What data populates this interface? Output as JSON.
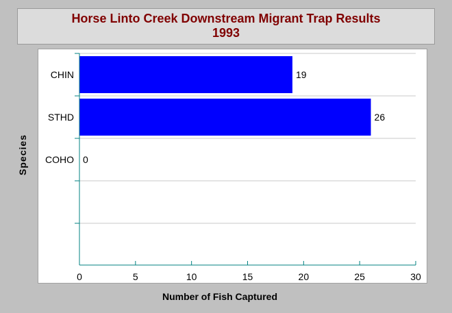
{
  "chart_data": {
    "type": "bar",
    "orientation": "horizontal",
    "title_lines": [
      "Horse Linto Creek Downstream Migrant Trap Results",
      "1993"
    ],
    "xlabel": "Number of Fish Captured",
    "ylabel": "Species",
    "categories": [
      "CHIN",
      "STHD",
      "COHO"
    ],
    "values": [
      19,
      26,
      0
    ],
    "xlim": [
      0,
      30
    ],
    "x_ticks": [
      0,
      5,
      10,
      15,
      20,
      25,
      30
    ],
    "data_labels": true,
    "grid": "horizontal",
    "legend": "none",
    "bar_color": "#0000ff",
    "title_color": "#800000",
    "axis_color": "#008080",
    "grid_color": "#c8c8c8"
  }
}
